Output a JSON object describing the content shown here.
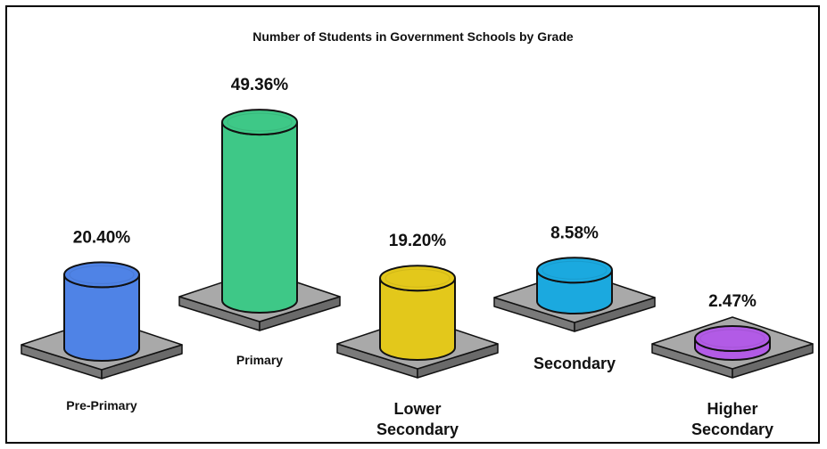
{
  "chart_data": {
    "type": "bar",
    "title": "Number of Students in Government Schools by Grade",
    "categories": [
      "Pre-Primary",
      "Primary",
      "Lower Secondary",
      "Secondary",
      "Higher Secondary"
    ],
    "category_lines": [
      [
        "Pre-Primary"
      ],
      [
        "Primary"
      ],
      [
        "Lower",
        "Secondary"
      ],
      [
        "Secondary"
      ],
      [
        "Higher",
        "Secondary"
      ]
    ],
    "values": [
      20.4,
      49.36,
      19.2,
      8.58,
      2.47
    ],
    "value_labels": [
      "20.40%",
      "49.36%",
      "19.20%",
      "8.58%",
      "2.47%"
    ],
    "unit": "%",
    "colors": [
      "#4f83e6",
      "#3ec887",
      "#e3c81b",
      "#1ba9df",
      "#b25be6"
    ],
    "platform_color": "#a9a9a9",
    "grid": false,
    "legend": "none"
  }
}
